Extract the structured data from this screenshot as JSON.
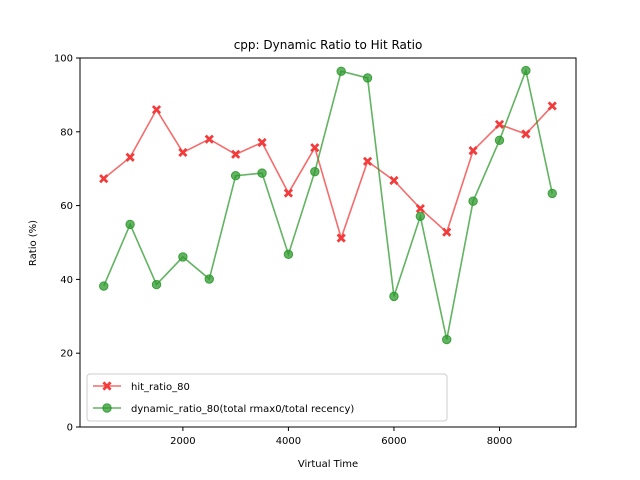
{
  "chart_data": {
    "type": "line",
    "title": "cpp: Dynamic Ratio to Hit Ratio",
    "xlabel": "Virtual Time",
    "ylabel": "Ratio (%)",
    "xlim": [
      50,
      9450
    ],
    "ylim": [
      0,
      100
    ],
    "xticks": [
      2000,
      4000,
      6000,
      8000
    ],
    "yticks": [
      0,
      20,
      40,
      60,
      80,
      100
    ],
    "grid": false,
    "legend_position": "lower-left",
    "x": [
      500,
      1000,
      1500,
      2000,
      2500,
      3000,
      3500,
      4000,
      4500,
      5000,
      5500,
      6000,
      6500,
      7000,
      7500,
      8000,
      8500,
      9000
    ],
    "series": [
      {
        "name": "hit_ratio_80",
        "color": "#f33b3b",
        "marker": "x-filled",
        "values": [
          67.3,
          73.1,
          86.0,
          74.4,
          78.0,
          73.9,
          77.1,
          63.4,
          75.7,
          51.2,
          72.0,
          66.8,
          59.2,
          52.8,
          74.9,
          82.0,
          79.4,
          87.0
        ]
      },
      {
        "name": "dynamic_ratio_80(total rmax0/total recency)",
        "color": "#2d9a2d",
        "marker": "circle",
        "values": [
          38.2,
          54.9,
          38.6,
          46.1,
          40.1,
          68.1,
          68.8,
          46.8,
          69.2,
          96.4,
          94.6,
          35.4,
          57.1,
          23.7,
          61.2,
          77.7,
          96.6,
          63.3
        ]
      }
    ]
  }
}
